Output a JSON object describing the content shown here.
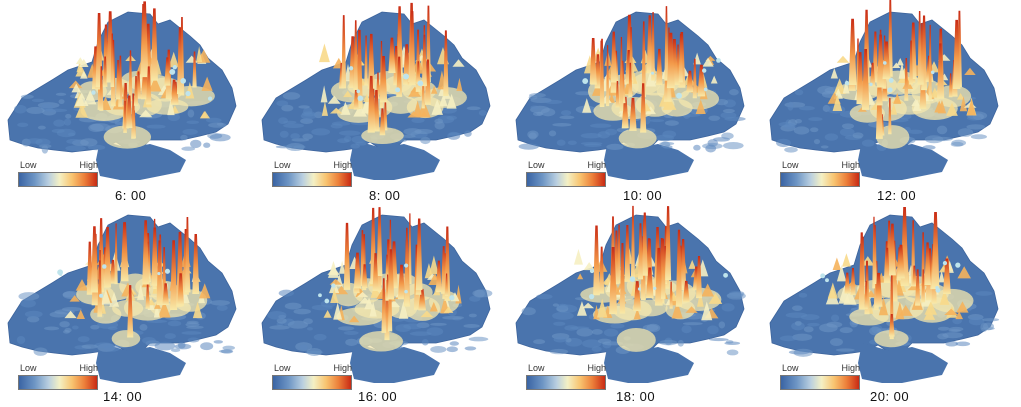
{
  "legend": {
    "low": "Low",
    "high": "High"
  },
  "panels": [
    {
      "time": "6: 00"
    },
    {
      "time": "8: 00"
    },
    {
      "time": "10: 00"
    },
    {
      "time": "12: 00"
    },
    {
      "time": "14: 00"
    },
    {
      "time": "16: 00"
    },
    {
      "time": "18: 00"
    },
    {
      "time": "20: 00"
    }
  ],
  "colors": {
    "base": "#4a74ad",
    "low": "#3a64a4",
    "mid": "#f4f0c4",
    "high": "#c92b14"
  }
}
